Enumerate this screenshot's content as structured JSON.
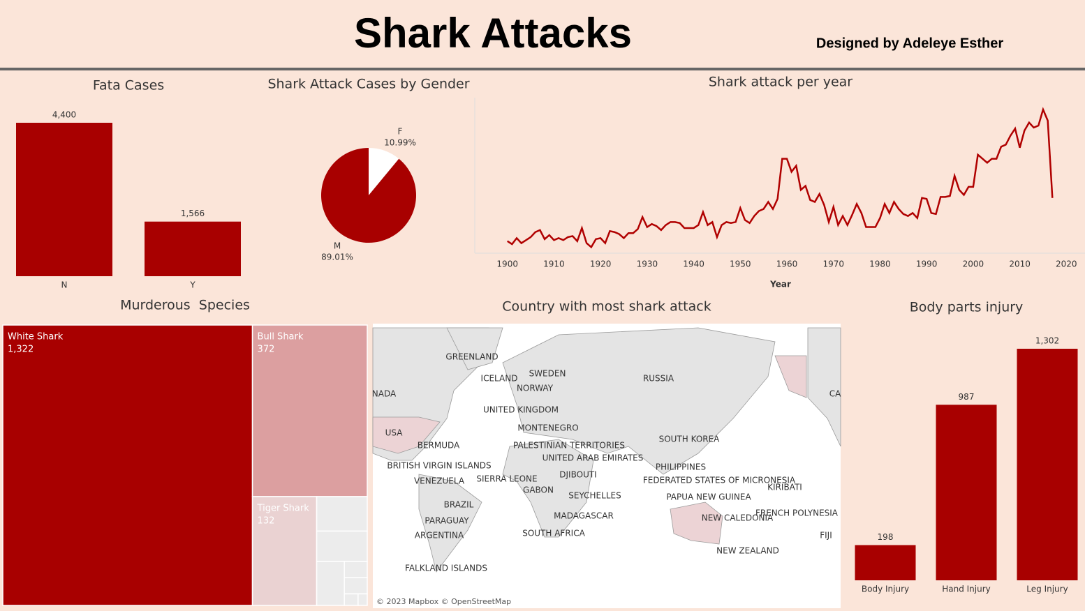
{
  "header": {
    "title": "Shark Attacks",
    "subtitle": "Designed by Adeleye Esther"
  },
  "chart_data": [
    {
      "type": "bar",
      "title": "Fata Cases",
      "categories": [
        "N",
        "Y"
      ],
      "values": [
        4400,
        1566
      ],
      "value_labels": [
        "4,400",
        "1,566"
      ],
      "color": "#a80000"
    },
    {
      "type": "pie",
      "title": "Shark Attack Cases by Gender",
      "categories": [
        "F",
        "M"
      ],
      "values": [
        10.99,
        89.01
      ],
      "value_labels": [
        "10.99%",
        "89.01%"
      ],
      "colors": [
        "#ffffff",
        "#a80000"
      ]
    },
    {
      "type": "line",
      "title": "Shark attack per year",
      "x_label": "Year",
      "color": "#b00000",
      "x": [
        1900,
        1901,
        1902,
        1903,
        1904,
        1905,
        1906,
        1907,
        1908,
        1909,
        1910,
        1911,
        1912,
        1913,
        1914,
        1915,
        1916,
        1917,
        1918,
        1919,
        1920,
        1921,
        1922,
        1923,
        1924,
        1925,
        1926,
        1927,
        1928,
        1929,
        1930,
        1931,
        1932,
        1933,
        1934,
        1935,
        1936,
        1937,
        1938,
        1939,
        1940,
        1941,
        1942,
        1943,
        1944,
        1945,
        1946,
        1947,
        1948,
        1949,
        1950,
        1951,
        1952,
        1953,
        1954,
        1955,
        1956,
        1957,
        1958,
        1959,
        1960,
        1961,
        1962,
        1963,
        1964,
        1965,
        1966,
        1967,
        1968,
        1969,
        1970,
        1971,
        1972,
        1973,
        1974,
        1975,
        1976,
        1977,
        1978,
        1979,
        1980,
        1981,
        1982,
        1983,
        1984,
        1985,
        1986,
        1987,
        1988,
        1989,
        1990,
        1991,
        1992,
        1993,
        1994,
        1995,
        1996,
        1997,
        1998,
        1999,
        2000,
        2001,
        2002,
        2003,
        2004,
        2005,
        2006,
        2007,
        2008,
        2009,
        2010,
        2011,
        2012,
        2013,
        2014,
        2015,
        2016,
        2017
      ],
      "values": [
        12,
        9,
        15,
        10,
        13,
        16,
        21,
        23,
        14,
        18,
        13,
        15,
        13,
        16,
        17,
        12,
        25,
        10,
        6,
        14,
        15,
        10,
        22,
        21,
        19,
        15,
        20,
        20,
        24,
        36,
        26,
        29,
        27,
        23,
        28,
        31,
        31,
        30,
        25,
        25,
        25,
        28,
        41,
        28,
        31,
        16,
        28,
        31,
        30,
        31,
        45,
        33,
        30,
        37,
        42,
        44,
        51,
        44,
        54,
        94,
        94,
        81,
        87,
        63,
        67,
        53,
        51,
        59,
        48,
        31,
        46,
        28,
        37,
        28,
        38,
        49,
        40,
        26,
        26,
        26,
        35,
        49,
        40,
        51,
        44,
        39,
        37,
        40,
        35,
        55,
        54,
        40,
        39,
        56,
        56,
        57,
        77,
        63,
        58,
        66,
        66,
        98,
        94,
        90,
        94,
        94,
        106,
        108,
        117,
        124,
        105,
        122,
        130,
        125,
        127,
        143,
        132,
        55
      ],
      "xlim": [
        1893,
        2024
      ],
      "xticks": [
        1900,
        1910,
        1920,
        1930,
        1940,
        1950,
        1960,
        1970,
        1980,
        1990,
        2000,
        2010,
        2020
      ]
    },
    {
      "type": "treemap",
      "title": "Murderous  Species",
      "categories": [
        "White Shark",
        "Bull Shark",
        "Tiger Shark",
        null,
        null,
        null,
        null,
        null,
        null,
        null
      ],
      "values": [
        1322,
        372,
        132,
        33,
        29,
        23,
        7,
        7,
        3,
        2
      ],
      "value_labels": [
        "1,322",
        "372",
        "132",
        null,
        null,
        null,
        null,
        null,
        null,
        null
      ],
      "colors": [
        "#a80000",
        "#dc9fa0",
        "#ead2d2",
        "#ececec",
        "#ececec",
        "#ececec",
        "#ececec",
        "#ececec",
        "#ececec",
        "#ececec"
      ]
    },
    {
      "type": "map",
      "title": "Country with most shark attack",
      "attribution": "© 2023 Mapbox © OpenStreetMap",
      "labels": [
        "GREENLAND",
        "ICELAND",
        "SWEDEN",
        "NORWAY",
        "RUSSIA",
        "NADA",
        "CA",
        "UNITED KINGDOM",
        "USA",
        "MONTENEGRO",
        "SOUTH KOREA",
        "BERMUDA",
        "PALESTINIAN TERRITORIES",
        "UNITED ARAB EMIRATES",
        "BRITISH VIRGIN ISLANDS",
        "PHILIPPINES",
        "VENEZUELA",
        "SIERRA LEONE",
        "DJIBOUTI",
        "FEDERATED STATES OF MICRONESIA",
        "KIRIBATI",
        "GABON",
        "SEYCHELLES",
        "PAPUA NEW GUINEA",
        "BRAZIL",
        "MADAGASCAR",
        "NEW CALEDONIA",
        "FRENCH POLYNESIA",
        "PARAGUAY",
        "ARGENTINA",
        "SOUTH AFRICA",
        "FIJI",
        "NEW ZEALAND",
        "FALKLAND ISLANDS"
      ]
    },
    {
      "type": "bar",
      "title": "Body parts injury",
      "categories": [
        "Body Injury",
        "Hand Injury",
        "Leg Injury"
      ],
      "values": [
        198,
        987,
        1302
      ],
      "value_labels": [
        "198",
        "987",
        "1,302"
      ],
      "color": "#a80000"
    }
  ]
}
